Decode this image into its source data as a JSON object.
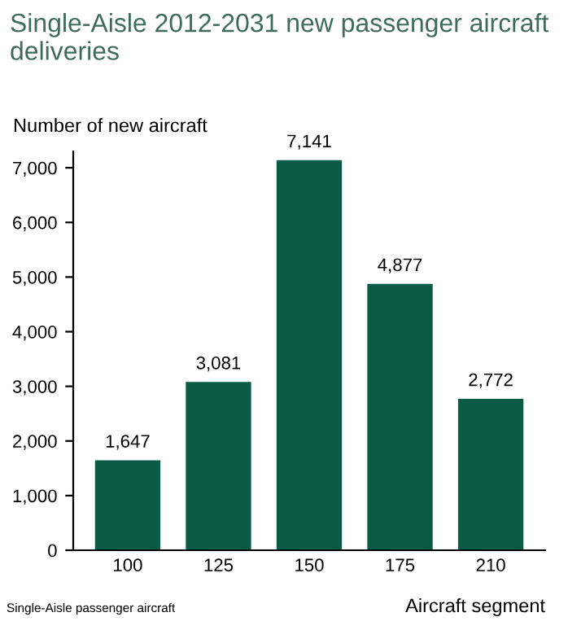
{
  "chart_data": {
    "type": "bar",
    "title": "Single-Aisle 2012-2031 new passenger aircraft deliveries",
    "ylabel": "Number of new aircraft",
    "xlabel": "Aircraft segment",
    "categories": [
      "100",
      "125",
      "150",
      "175",
      "210"
    ],
    "values": [
      1647,
      3081,
      7141,
      4877,
      2772
    ],
    "color": "#0b5c45",
    "data_labels": true,
    "value_labels": [
      "1,647",
      "3,081",
      "7,141",
      "4,877",
      "2,772"
    ],
    "ylim": [
      0,
      7300
    ],
    "yticks": [
      {
        "value": 0,
        "label": "0"
      },
      {
        "value": 1000,
        "label": "1,000"
      },
      {
        "value": 2000,
        "label": "2,000"
      },
      {
        "value": 3000,
        "label": "3,000"
      },
      {
        "value": 4000,
        "label": "4,000"
      },
      {
        "value": 5000,
        "label": "5,000"
      },
      {
        "value": 6000,
        "label": "6,000"
      },
      {
        "value": 7000,
        "label": "7,000"
      }
    ],
    "grid": false,
    "legend": false,
    "annotations": [
      "Single-Aisle passenger aircraft"
    ]
  }
}
